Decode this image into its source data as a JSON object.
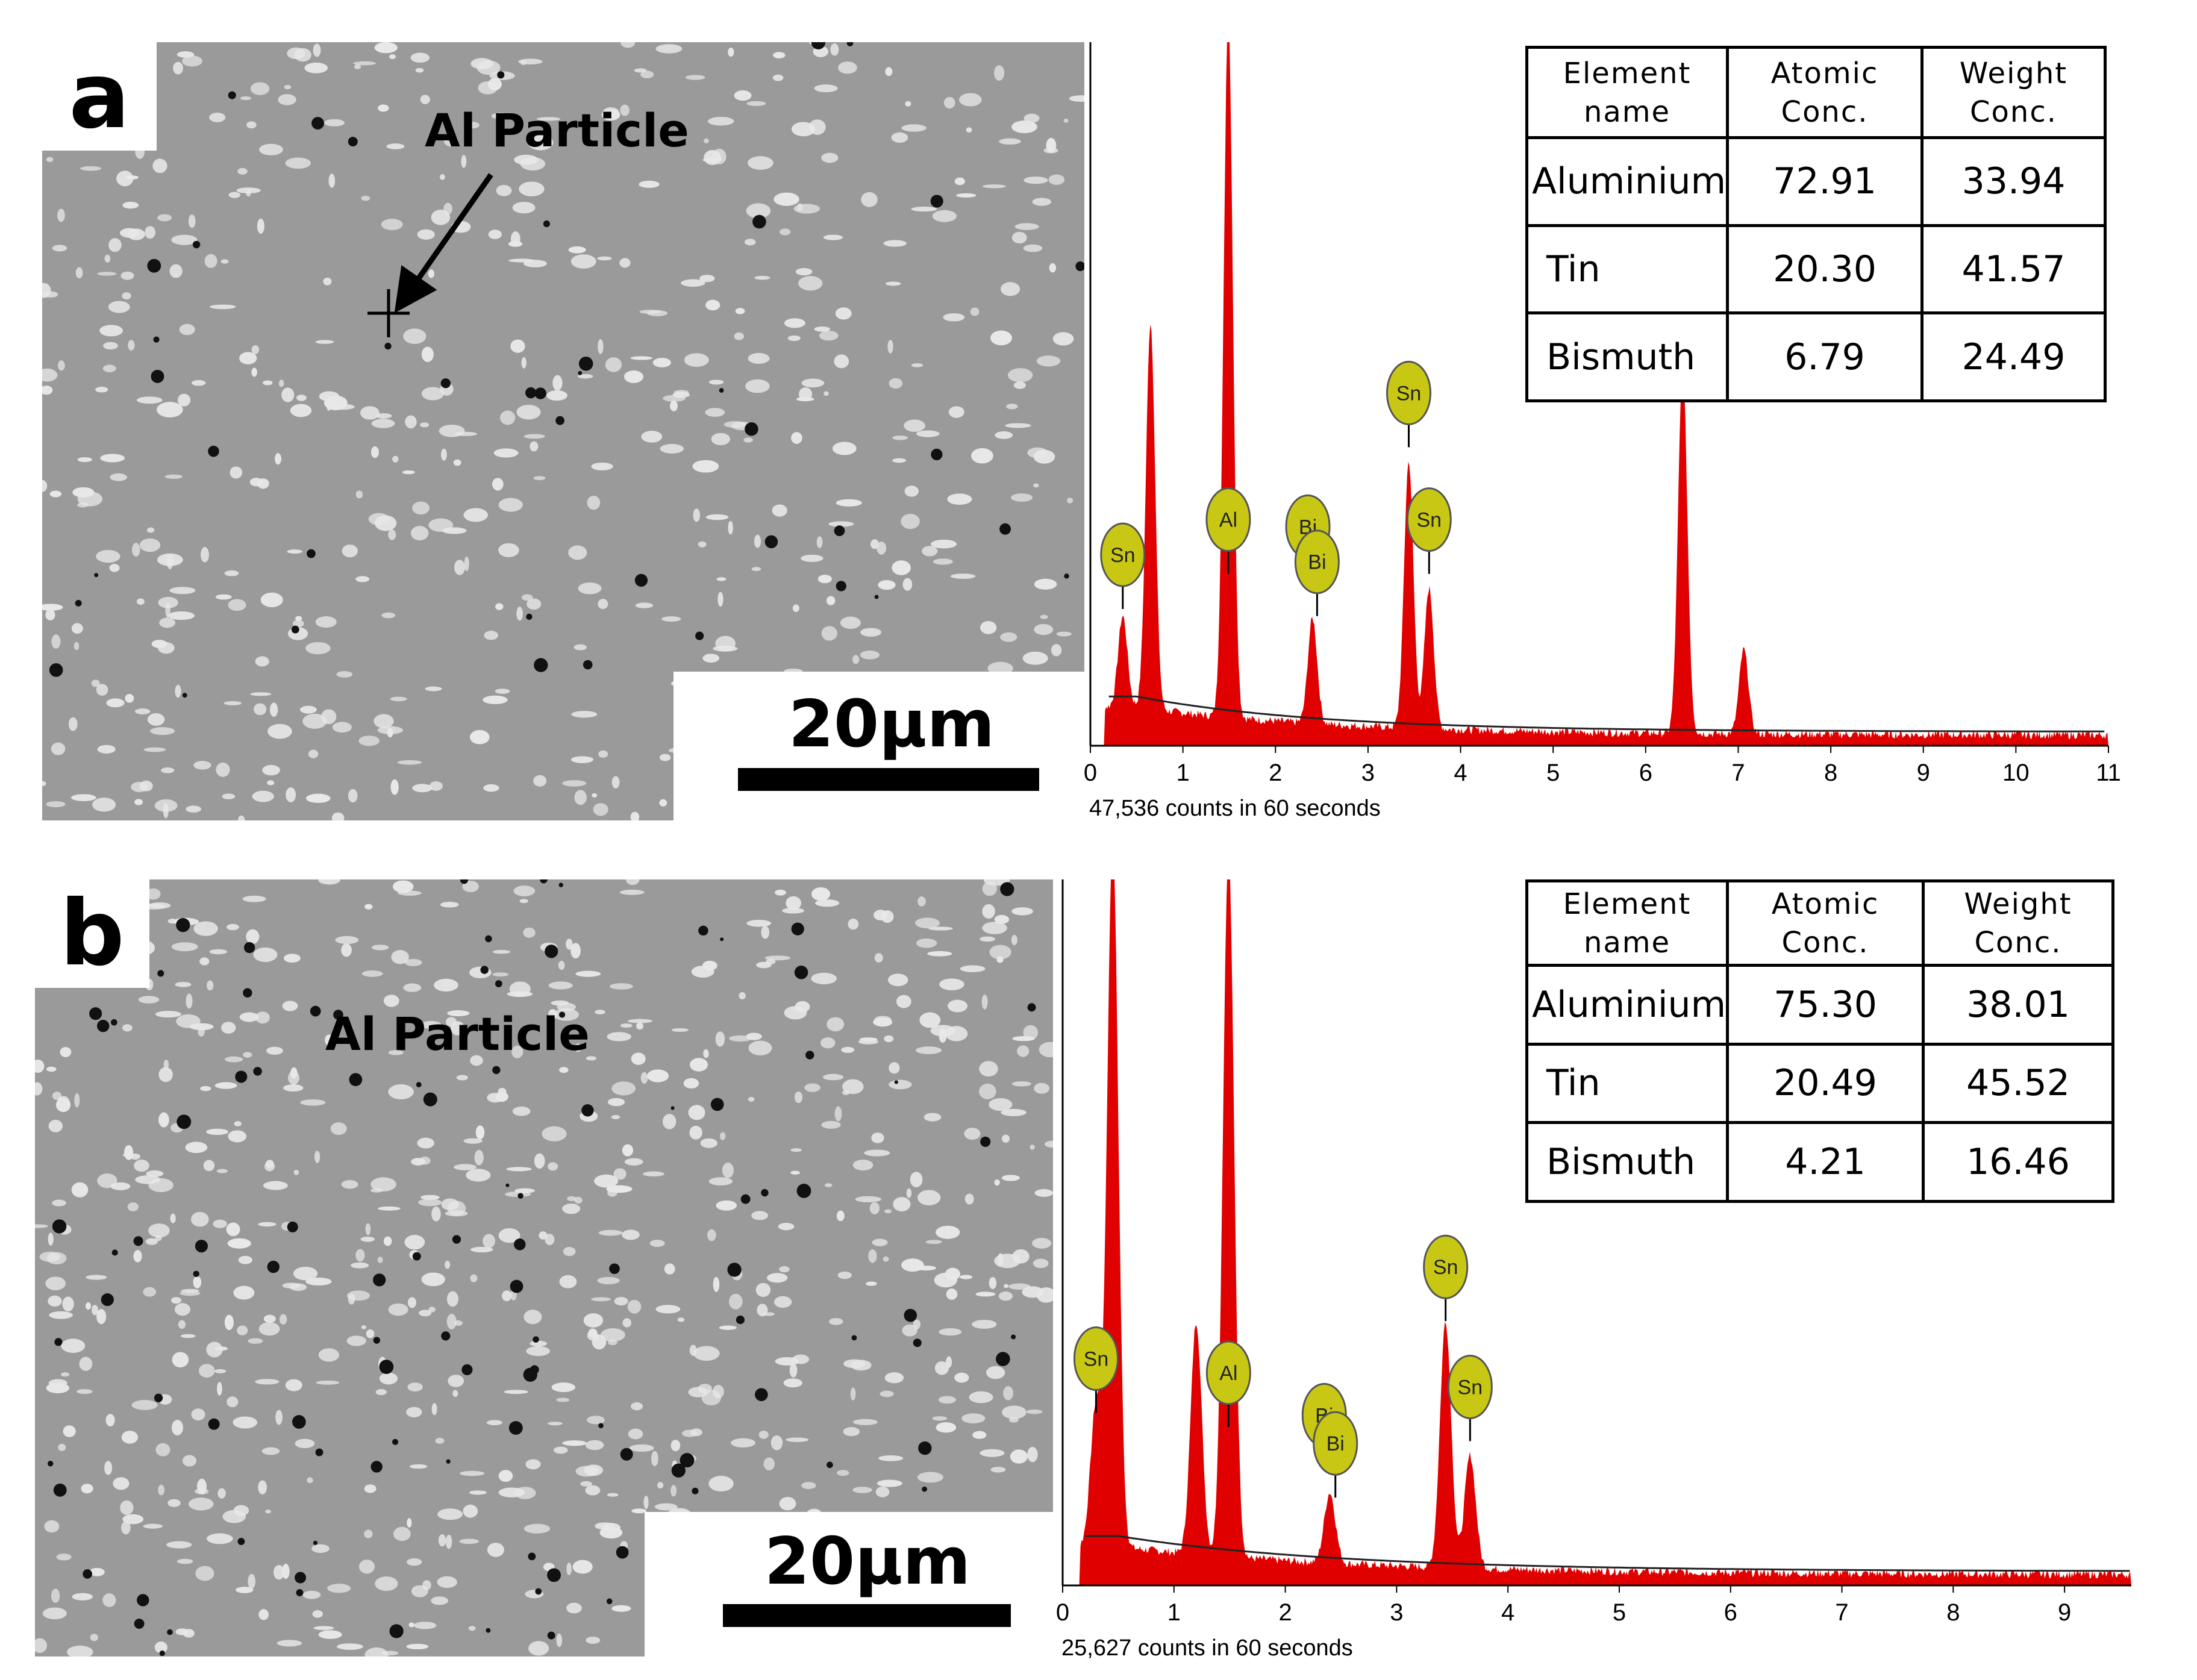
{
  "panels": [
    {
      "label": "a",
      "particle_label": "Al Particle",
      "scale_text": "20μm",
      "table": {
        "headers": [
          [
            "Element",
            "name"
          ],
          [
            "Atomic",
            "Conc."
          ],
          [
            "Weight",
            "Conc."
          ]
        ],
        "rows": [
          [
            "Aluminium",
            "72.91",
            "33.94"
          ],
          [
            "Tin",
            "20.30",
            "41.57"
          ],
          [
            "Bismuth",
            "6.79",
            "24.49"
          ]
        ]
      },
      "counts_text": "47,536 counts in 60 seconds"
    },
    {
      "label": "b",
      "particle_label": "Al Particle",
      "scale_text": "20μm",
      "table": {
        "headers": [
          [
            "Element",
            "name"
          ],
          [
            "Atomic",
            "Conc."
          ],
          [
            "Weight",
            "Conc."
          ]
        ],
        "rows": [
          [
            "Aluminium",
            "75.30",
            "38.01"
          ],
          [
            "Tin",
            "20.49",
            "45.52"
          ],
          [
            "Bismuth",
            "4.21",
            "16.46"
          ]
        ]
      },
      "counts_text": "25,627 counts in 60 seconds"
    }
  ],
  "colors": {
    "spectrum_fill": "#e00000",
    "peak_marker": "#c8c814",
    "sem_background": "#9a9a9a"
  },
  "chart_data": [
    {
      "type": "area",
      "title": "",
      "xlabel": "",
      "ylabel": "",
      "xlim": [
        0,
        11
      ],
      "x_ticks": [
        "0",
        "1",
        "2",
        "3",
        "4",
        "5",
        "6",
        "7",
        "8",
        "9",
        "10",
        "11"
      ],
      "peaks": [
        {
          "x": 0.35,
          "relative_height": 0.13
        },
        {
          "x": 0.65,
          "relative_height": 0.55
        },
        {
          "x": 1.49,
          "relative_height": 1.0
        },
        {
          "x": 2.4,
          "relative_height": 0.15
        },
        {
          "x": 3.44,
          "relative_height": 0.38
        },
        {
          "x": 3.66,
          "relative_height": 0.2
        },
        {
          "x": 6.4,
          "relative_height": 0.52
        },
        {
          "x": 7.06,
          "relative_height": 0.12
        }
      ],
      "peak_labels": [
        {
          "x": 0.35,
          "label": "Sn",
          "level": 0.22
        },
        {
          "x": 1.49,
          "label": "Al",
          "level": 0.27
        },
        {
          "x": 2.35,
          "label": "Bi",
          "level": 0.26
        },
        {
          "x": 2.45,
          "label": "Bi",
          "level": 0.21
        },
        {
          "x": 3.44,
          "label": "Sn",
          "level": 0.45
        },
        {
          "x": 3.66,
          "label": "Sn",
          "level": 0.27
        }
      ]
    },
    {
      "type": "area",
      "title": "",
      "xlabel": "",
      "ylabel": "",
      "xlim": [
        0,
        9.6
      ],
      "x_ticks": [
        "0",
        "1",
        "2",
        "3",
        "4",
        "5",
        "6",
        "7",
        "8",
        "9"
      ],
      "peaks": [
        {
          "x": 0.3,
          "relative_height": 0.2
        },
        {
          "x": 0.45,
          "relative_height": 1.0
        },
        {
          "x": 1.2,
          "relative_height": 0.33
        },
        {
          "x": 1.49,
          "relative_height": 1.0
        },
        {
          "x": 2.4,
          "relative_height": 0.1
        },
        {
          "x": 3.44,
          "relative_height": 0.35
        },
        {
          "x": 3.66,
          "relative_height": 0.16
        }
      ],
      "peak_labels": [
        {
          "x": 0.3,
          "label": "Sn",
          "level": 0.27
        },
        {
          "x": 1.49,
          "label": "Al",
          "level": 0.25
        },
        {
          "x": 2.35,
          "label": "Bi",
          "level": 0.19
        },
        {
          "x": 2.45,
          "label": "Bi",
          "level": 0.15
        },
        {
          "x": 3.44,
          "label": "Sn",
          "level": 0.4
        },
        {
          "x": 3.66,
          "label": "Sn",
          "level": 0.23
        }
      ]
    }
  ]
}
